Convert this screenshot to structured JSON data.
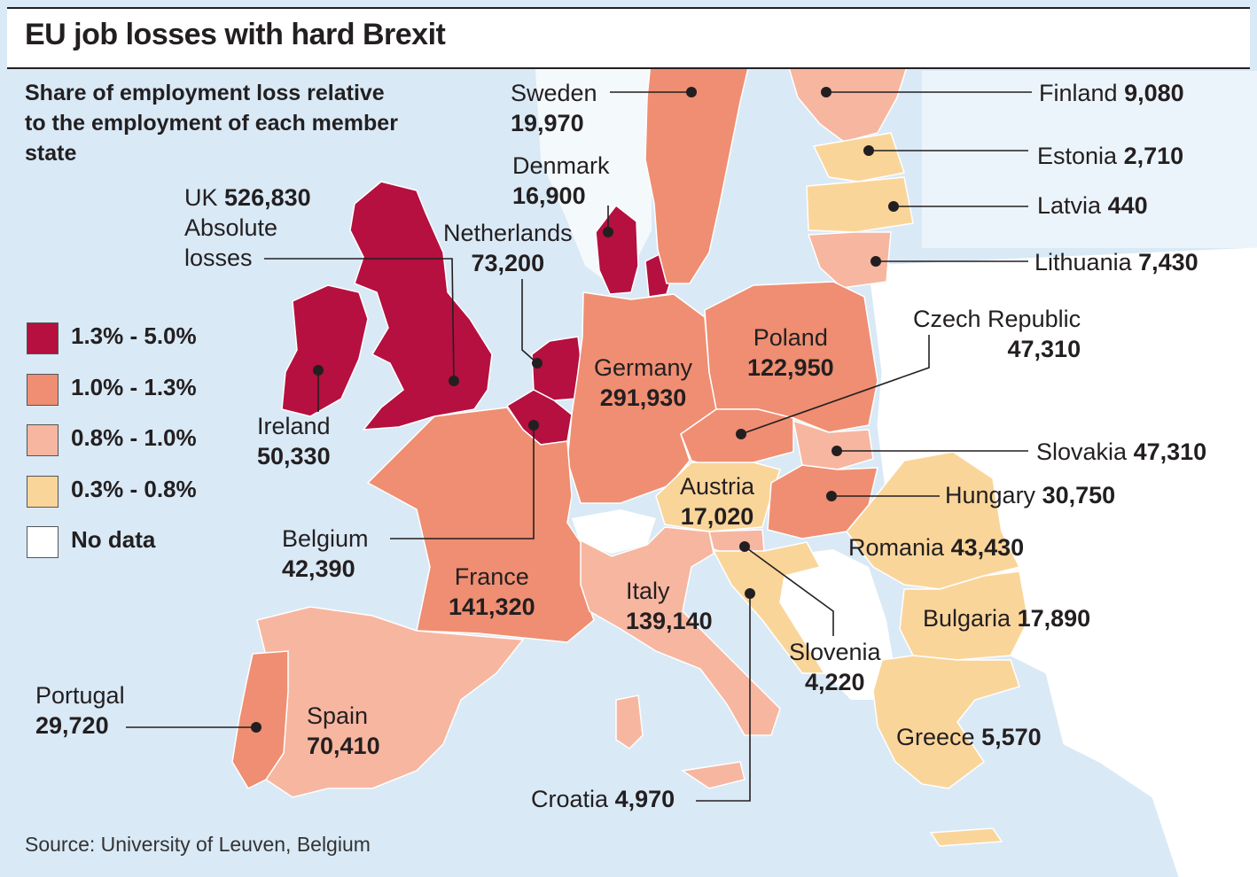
{
  "title": "EU job losses with hard Brexit",
  "subtitle": "Share of employment loss relative to the employment of each member state",
  "legend": [
    {
      "label": "1.3% - 5.0%",
      "color": "#b5103f"
    },
    {
      "label": "1.0% - 1.3%",
      "color": "#ef8e72"
    },
    {
      "label": "0.8% - 1.0%",
      "color": "#f7b6a0"
    },
    {
      "label": "0.3% - 0.8%",
      "color": "#fad59a"
    },
    {
      "label": "No data",
      "color": "#ffffff"
    }
  ],
  "countries": {
    "uk": {
      "name": "UK",
      "value": "526,830",
      "note1": "Absolute",
      "note2": "losses",
      "band": "1.3% - 5.0%"
    },
    "ireland": {
      "name": "Ireland",
      "value": "50,330",
      "band": "1.3% - 5.0%"
    },
    "netherlands": {
      "name": "Netherlands",
      "value": "73,200",
      "band": "1.3% - 5.0%"
    },
    "belgium": {
      "name": "Belgium",
      "value": "42,390",
      "band": "1.3% - 5.0%"
    },
    "denmark": {
      "name": "Denmark",
      "value": "16,900",
      "band": "1.3% - 5.0%"
    },
    "sweden": {
      "name": "Sweden",
      "value": "19,970",
      "band": "1.0% - 1.3%"
    },
    "finland": {
      "name": "Finland",
      "value": "9,080",
      "band": "0.8% - 1.0%"
    },
    "estonia": {
      "name": "Estonia",
      "value": "2,710",
      "band": "0.3% - 0.8%"
    },
    "latvia": {
      "name": "Latvia",
      "value": "440",
      "band": "0.3% - 0.8%"
    },
    "lithuania": {
      "name": "Lithuania",
      "value": "7,430",
      "band": "0.8% - 1.0%"
    },
    "germany": {
      "name": "Germany",
      "value": "291,930",
      "band": "1.0% - 1.3%"
    },
    "poland": {
      "name": "Poland",
      "value": "122,950",
      "band": "1.0% - 1.3%"
    },
    "czech": {
      "name": "Czech Republic",
      "value": "47,310",
      "band": "1.0% - 1.3%"
    },
    "slovakia": {
      "name": "Slovakia",
      "value": "47,310",
      "band": "0.8% - 1.0%"
    },
    "hungary": {
      "name": "Hungary",
      "value": "30,750",
      "band": "1.0% - 1.3%"
    },
    "austria": {
      "name": "Austria",
      "value": "17,020",
      "band": "0.3% - 0.8%"
    },
    "romania": {
      "name": "Romania",
      "value": "43,430",
      "band": "0.3% - 0.8%"
    },
    "bulgaria": {
      "name": "Bulgaria",
      "value": "17,890",
      "band": "0.3% - 0.8%"
    },
    "slovenia": {
      "name": "Slovenia",
      "value": "4,220",
      "band": "0.8% - 1.0%"
    },
    "croatia": {
      "name": "Croatia",
      "value": "4,970",
      "band": "0.3% - 0.8%"
    },
    "greece": {
      "name": "Greece",
      "value": "5,570",
      "band": "0.3% - 0.8%"
    },
    "france": {
      "name": "France",
      "value": "141,320",
      "band": "1.0% - 1.3%"
    },
    "italy": {
      "name": "Italy",
      "value": "139,140",
      "band": "0.8% - 1.0%"
    },
    "spain": {
      "name": "Spain",
      "value": "70,410",
      "band": "0.8% - 1.0%"
    },
    "portugal": {
      "name": "Portugal",
      "value": "29,720",
      "band": "1.0% - 1.3%"
    }
  },
  "source": "Source: University of Leuven, Belgium"
}
